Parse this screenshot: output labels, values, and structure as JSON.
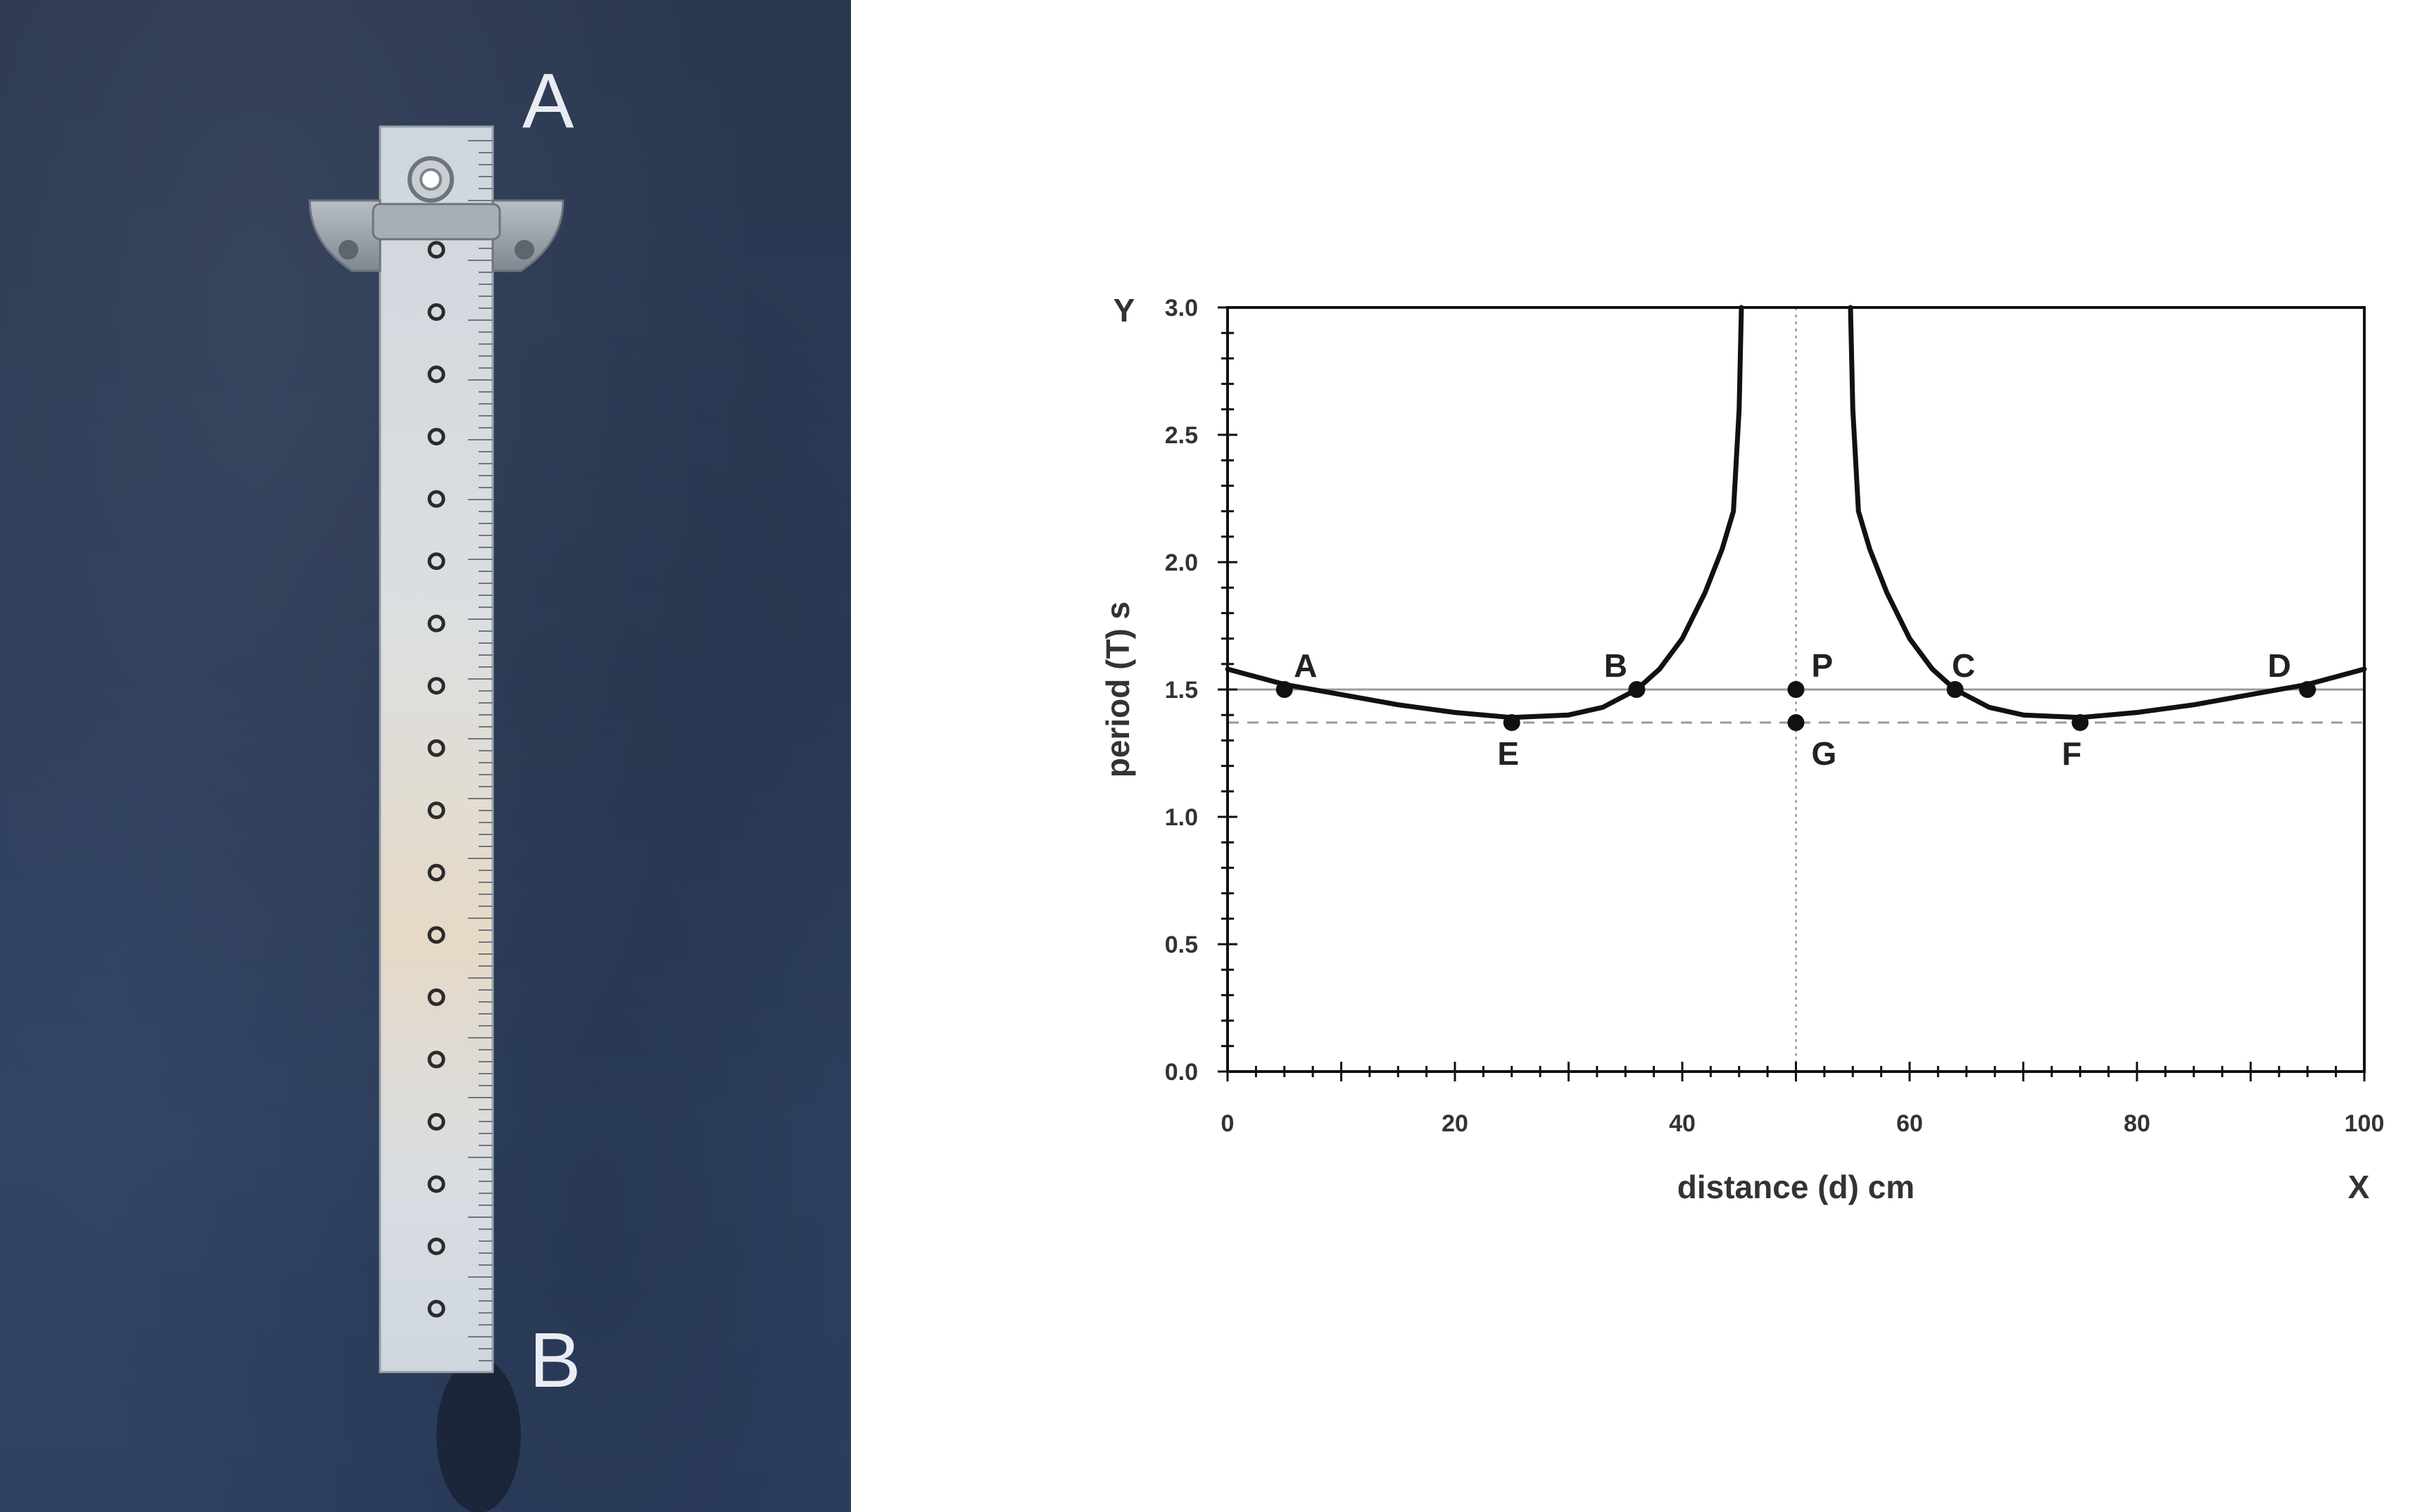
{
  "apparatus": {
    "top_label": "A",
    "bottom_label": "B",
    "hole_count": 18
  },
  "chart_data": {
    "type": "line",
    "title": "",
    "xlabel": "distance (d) cm",
    "ylabel": "period (T) s",
    "x_axis_letter": "X",
    "y_axis_letter": "Y",
    "xlim": [
      0,
      100
    ],
    "ylim": [
      0.0,
      3.0
    ],
    "x_ticks": [
      0,
      20,
      40,
      60,
      80,
      100
    ],
    "y_ticks": [
      "0.0",
      "0.5",
      "1.0",
      "1.5",
      "2.0",
      "2.5",
      "3.0"
    ],
    "series": [
      {
        "x": [
          0,
          5,
          10,
          15,
          20,
          25,
          30,
          33,
          36,
          38,
          40,
          42,
          43.5,
          44.5,
          45,
          45.2
        ],
        "y": [
          1.58,
          1.52,
          1.48,
          1.44,
          1.41,
          1.39,
          1.4,
          1.43,
          1.5,
          1.58,
          1.7,
          1.88,
          2.05,
          2.2,
          2.6,
          3.0
        ]
      },
      {
        "x": [
          54.8,
          55,
          55.5,
          56.5,
          58,
          60,
          62,
          64,
          67,
          70,
          75,
          80,
          85,
          90,
          95,
          100
        ],
        "y": [
          3.0,
          2.6,
          2.2,
          2.05,
          1.88,
          1.7,
          1.58,
          1.5,
          1.43,
          1.4,
          1.39,
          1.41,
          1.44,
          1.48,
          1.52,
          1.58
        ]
      }
    ],
    "reference_lines": {
      "solid_horizontal_y": 1.5,
      "dashed_horizontal_y": 1.37,
      "dotted_vertical_x": 50
    },
    "points": [
      {
        "label": "A",
        "x": 5,
        "y": 1.5
      },
      {
        "label": "B",
        "x": 36,
        "y": 1.5
      },
      {
        "label": "P",
        "x": 50,
        "y": 1.5
      },
      {
        "label": "C",
        "x": 64,
        "y": 1.5
      },
      {
        "label": "D",
        "x": 95,
        "y": 1.5
      },
      {
        "label": "E",
        "x": 25,
        "y": 1.37
      },
      {
        "label": "G",
        "x": 50,
        "y": 1.37
      },
      {
        "label": "F",
        "x": 75,
        "y": 1.37
      }
    ],
    "grid": false,
    "legend": "none"
  }
}
